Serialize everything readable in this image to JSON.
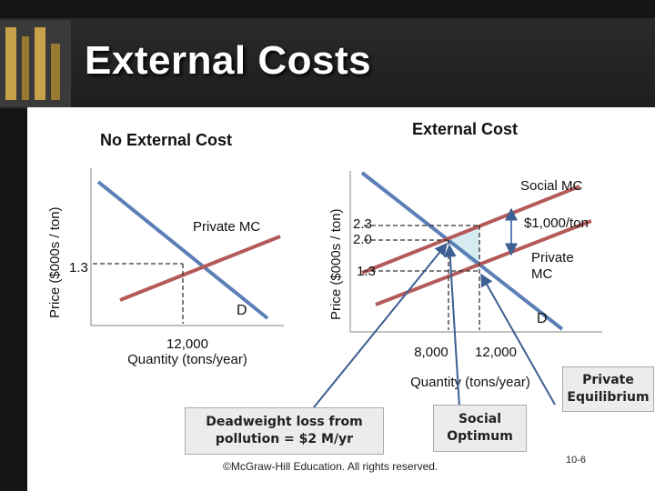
{
  "slide": {
    "title": "External Costs",
    "page_number": "10-6",
    "copyright": "©McGraw-Hill Education. All rights reserved."
  },
  "left_graph": {
    "heading": "No External Cost",
    "y_axis_label": "Price ($000s / ton)",
    "x_axis_label": "Quantity (tons/year)",
    "supply_label": "Private MC",
    "demand_label": "D",
    "price_label": "1.3",
    "quantity_label": "12,000"
  },
  "right_graph": {
    "heading": "External Cost",
    "y_axis_label": "Price ($000s / ton)",
    "x_axis_label": "Quantity (tons/year)",
    "social_label": "Social MC",
    "private_label": "Private\nMC",
    "demand_label": "D",
    "price_labels": [
      "2.3",
      "2.0",
      "1.3"
    ],
    "quantity_labels": [
      "8,000",
      "12,000"
    ],
    "external_cost_label": "$1,000/ton"
  },
  "callouts": {
    "deadweight": "Deadweight loss from\npollution = $2 M/yr",
    "social_optimum": "Social\nOptimum",
    "private_equilibrium": "Private\nEquilibrium"
  },
  "colors": {
    "demand": "#5b7fb6",
    "supply": "#b45a5a",
    "deadweight_area": "#d7ebf3",
    "pointer": "#3d5f92"
  }
}
